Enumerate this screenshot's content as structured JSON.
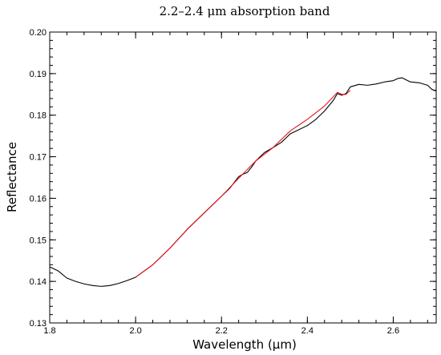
{
  "chart_data": {
    "type": "line",
    "title": "2.2–2.4 μm absorption band",
    "xlabel": "Wavelength (μm)",
    "ylabel": "Reflectance",
    "xlim": [
      1.8,
      2.7
    ],
    "ylim": [
      0.13,
      0.2
    ],
    "x_ticks": [
      1.8,
      2.0,
      2.2,
      2.4,
      2.6
    ],
    "x_tick_labels": [
      "1.8",
      "2.0",
      "2.2",
      "2.4",
      "2.6"
    ],
    "y_ticks": [
      0.13,
      0.14,
      0.15,
      0.16,
      0.17,
      0.18,
      0.19,
      0.2
    ],
    "y_tick_labels": [
      "0.13",
      "0.14",
      "0.15",
      "0.16",
      "0.17",
      "0.18",
      "0.19",
      "0.20"
    ],
    "grid": false,
    "legend": "none",
    "series": [
      {
        "color": "#000000",
        "x": [
          1.8,
          1.82,
          1.84,
          1.86,
          1.88,
          1.9,
          1.92,
          1.94,
          1.96,
          1.98,
          2.0,
          2.04,
          2.08,
          2.12,
          2.16,
          2.2,
          2.22,
          2.24,
          2.25,
          2.26,
          2.27,
          2.28,
          2.3,
          2.32,
          2.34,
          2.35,
          2.36,
          2.38,
          2.4,
          2.42,
          2.44,
          2.46,
          2.47,
          2.48,
          2.49,
          2.5,
          2.52,
          2.54,
          2.56,
          2.58,
          2.6,
          2.61,
          2.62,
          2.63,
          2.64,
          2.66,
          2.68,
          2.69,
          2.7
        ],
        "y": [
          0.1435,
          0.1425,
          0.1408,
          0.14,
          0.1394,
          0.139,
          0.1388,
          0.139,
          0.1395,
          0.1402,
          0.141,
          0.144,
          0.148,
          0.1525,
          0.1565,
          0.1605,
          0.1625,
          0.1652,
          0.1658,
          0.1662,
          0.1675,
          0.169,
          0.171,
          0.1722,
          0.1735,
          0.1745,
          0.1755,
          0.1765,
          0.1775,
          0.179,
          0.181,
          0.1835,
          0.1852,
          0.1848,
          0.1852,
          0.1868,
          0.1874,
          0.1872,
          0.1875,
          0.188,
          0.1883,
          0.1888,
          0.189,
          0.1885,
          0.188,
          0.1878,
          0.1872,
          0.1862,
          0.1858
        ]
      },
      {
        "color": "#e8131b",
        "x": [
          2.0,
          2.04,
          2.08,
          2.12,
          2.16,
          2.2,
          2.24,
          2.28,
          2.32,
          2.36,
          2.4,
          2.44,
          2.47,
          2.48,
          2.49,
          2.5
        ],
        "y": [
          0.141,
          0.144,
          0.148,
          0.1525,
          0.1565,
          0.1605,
          0.1648,
          0.169,
          0.1722,
          0.1762,
          0.179,
          0.1822,
          0.1855,
          0.185,
          0.185,
          0.186
        ]
      }
    ]
  }
}
